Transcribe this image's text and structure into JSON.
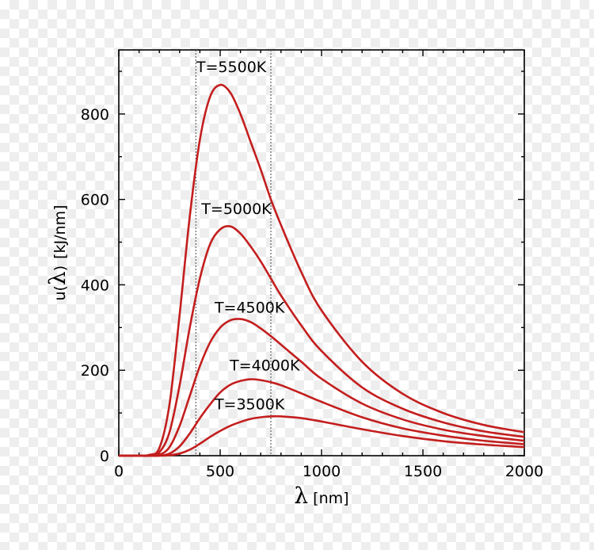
{
  "chart_data": {
    "type": "line",
    "title": "",
    "xlabel_symbol": "λ",
    "xlabel_unit": "[nm]",
    "ylabel_prefix": "u(",
    "ylabel_symbol": "λ",
    "ylabel_suffix": ")",
    "ylabel_unit": "[kJ/nm]",
    "xlim": [
      0,
      2000
    ],
    "ylim": [
      0,
      950
    ],
    "x_ticks": [
      0,
      500,
      1000,
      1500,
      2000
    ],
    "x_tick_labels": [
      "0",
      "500",
      "1000",
      "1500",
      "2000"
    ],
    "y_ticks": [
      0,
      200,
      400,
      600,
      800
    ],
    "y_tick_labels": [
      "0",
      "200",
      "400",
      "600",
      "800"
    ],
    "x_minor_step": 100,
    "y_minor_step": 100,
    "reference_lines_x": [
      380,
      750
    ],
    "curve_color": "#c41e1e",
    "x": [
      0,
      100,
      150,
      200,
      250,
      300,
      350,
      400,
      450,
      500,
      550,
      600,
      650,
      700,
      750,
      800,
      900,
      1000,
      1200,
      1400,
      1600,
      1800,
      2000
    ],
    "series": [
      {
        "name": "T=5500K",
        "label": "T=5500K",
        "values": [
          0,
          0,
          2,
          18,
          120,
          330,
          560,
          740,
          840,
          868,
          850,
          800,
          735,
          670,
          600,
          540,
          430,
          340,
          220,
          145,
          100,
          72,
          55
        ]
      },
      {
        "name": "T=5000K",
        "label": "T=5000K",
        "values": [
          0,
          0,
          0,
          8,
          55,
          165,
          300,
          415,
          495,
          530,
          537,
          520,
          490,
          455,
          415,
          375,
          305,
          245,
          160,
          110,
          78,
          57,
          44
        ]
      },
      {
        "name": "T=4500K",
        "label": "T=4500K",
        "values": [
          0,
          0,
          0,
          2,
          20,
          70,
          140,
          210,
          265,
          300,
          317,
          320,
          313,
          298,
          280,
          260,
          220,
          180,
          122,
          85,
          61,
          46,
          35
        ]
      },
      {
        "name": "T=4000K",
        "label": "T=4000K",
        "values": [
          0,
          0,
          0,
          0,
          5,
          22,
          52,
          88,
          120,
          148,
          166,
          175,
          179,
          177,
          172,
          165,
          146,
          126,
          90,
          64,
          47,
          35,
          27
        ]
      },
      {
        "name": "T=3500K",
        "label": "T=3500K",
        "values": [
          0,
          0,
          0,
          0,
          1,
          5,
          14,
          28,
          44,
          58,
          70,
          79,
          86,
          90,
          92,
          92,
          88,
          80,
          62,
          46,
          34,
          26,
          20
        ]
      }
    ],
    "label_positions_data": [
      {
        "series": "T=5500K",
        "x": 555,
        "y": 898
      },
      {
        "series": "T=5000K",
        "x": 580,
        "y": 566
      },
      {
        "series": "T=4500K",
        "x": 645,
        "y": 335
      },
      {
        "series": "T=4000K",
        "x": 720,
        "y": 199
      },
      {
        "series": "T=3500K",
        "x": 645,
        "y": 109
      }
    ]
  }
}
